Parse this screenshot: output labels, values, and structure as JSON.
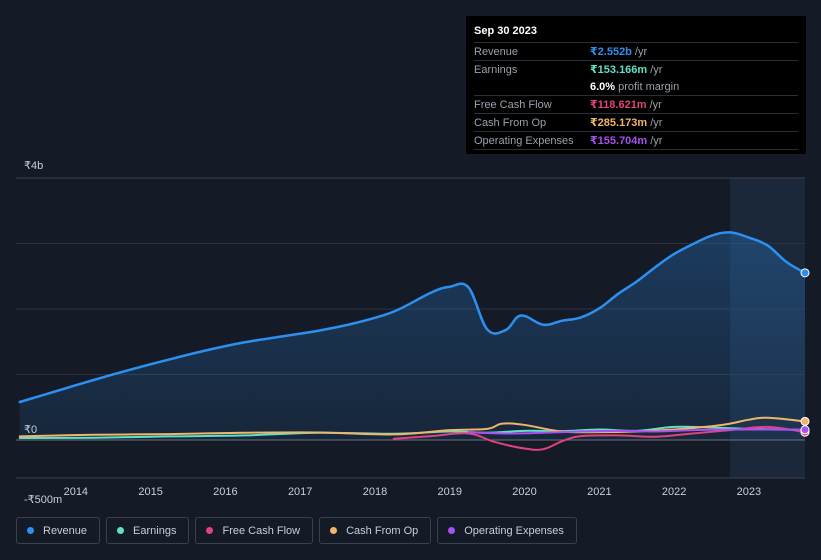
{
  "tooltip": {
    "date": "Sep 30 2023",
    "rows": [
      {
        "label": "Revenue",
        "value": "₹2.552b",
        "unit": "/yr",
        "color": "#2d8ff0"
      },
      {
        "label": "Earnings",
        "value": "₹153.166m",
        "unit": "/yr",
        "color": "#5fe0c6"
      },
      {
        "label": "",
        "value": "6.0%",
        "unit": "profit margin",
        "color": "#ffffff"
      },
      {
        "label": "Free Cash Flow",
        "value": "₹118.621m",
        "unit": "/yr",
        "color": "#e0427e"
      },
      {
        "label": "Cash From Op",
        "value": "₹285.173m",
        "unit": "/yr",
        "color": "#f0b46a"
      },
      {
        "label": "Operating Expenses",
        "value": "₹155.704m",
        "unit": "/yr",
        "color": "#a651f0"
      }
    ]
  },
  "chart_data": {
    "type": "line",
    "title": "",
    "xlabel": "",
    "ylabel": "",
    "y_unit": "₹",
    "ylim": [
      -500,
      4000
    ],
    "y_tick_labels": [
      {
        "value": 4000,
        "label": "₹4b"
      },
      {
        "value": 0,
        "label": "₹0"
      },
      {
        "value": -500,
        "label": "-₹500m"
      }
    ],
    "gridlines": [
      3000,
      2000,
      1000
    ],
    "x_range": [
      2013.2,
      2023.75
    ],
    "x_ticks": [
      2014,
      2015,
      2016,
      2017,
      2018,
      2019,
      2020,
      2021,
      2022,
      2023
    ],
    "x_tick_labels": [
      "2014",
      "2015",
      "2016",
      "2017",
      "2018",
      "2019",
      "2020",
      "2021",
      "2022",
      "2023"
    ],
    "forecast_start": 2022.75,
    "series": [
      {
        "name": "Revenue",
        "color": "#2d8ff0",
        "fill": true,
        "x": [
          2013.25,
          2013.75,
          2014.25,
          2014.75,
          2015.25,
          2015.75,
          2016.25,
          2016.75,
          2017.25,
          2017.75,
          2018.25,
          2018.75,
          2019.0,
          2019.25,
          2019.5,
          2019.75,
          2019.95,
          2020.25,
          2020.5,
          2020.75,
          2021.0,
          2021.25,
          2021.5,
          2021.75,
          2022.0,
          2022.25,
          2022.5,
          2022.75,
          2023.0,
          2023.25,
          2023.5,
          2023.75
        ],
        "values": [
          580,
          750,
          920,
          1080,
          1230,
          1370,
          1490,
          1580,
          1670,
          1790,
          1960,
          2250,
          2340,
          2330,
          1690,
          1680,
          1900,
          1760,
          1820,
          1870,
          2010,
          2230,
          2420,
          2640,
          2840,
          2990,
          3120,
          3170,
          3090,
          2970,
          2720,
          2552
        ]
      },
      {
        "name": "Earnings",
        "color": "#5fe0c6",
        "fill": false,
        "x": [
          2013.25,
          2014.25,
          2015.25,
          2016.25,
          2017.25,
          2018.25,
          2019.0,
          2019.5,
          2020.0,
          2020.5,
          2021.0,
          2021.5,
          2022.0,
          2022.5,
          2023.0,
          2023.5,
          2023.75
        ],
        "values": [
          30,
          35,
          55,
          70,
          110,
          95,
          130,
          110,
          140,
          135,
          160,
          140,
          200,
          190,
          170,
          160,
          153
        ]
      },
      {
        "name": "Free Cash Flow",
        "color": "#e0427e",
        "fill": false,
        "x": [
          2018.25,
          2018.75,
          2019.25,
          2019.6,
          2020.0,
          2020.25,
          2020.5,
          2020.75,
          2021.25,
          2021.75,
          2022.25,
          2022.75,
          2023.25,
          2023.75
        ],
        "values": [
          20,
          60,
          100,
          -30,
          -130,
          -140,
          -20,
          60,
          70,
          50,
          100,
          150,
          200,
          119
        ]
      },
      {
        "name": "Cash From Op",
        "color": "#f0b46a",
        "fill": false,
        "x": [
          2013.25,
          2014.25,
          2015.25,
          2016.25,
          2017.25,
          2018.25,
          2019.0,
          2019.5,
          2019.7,
          2020.0,
          2020.5,
          2021.0,
          2021.5,
          2022.0,
          2022.5,
          2022.75,
          2023.0,
          2023.25,
          2023.75
        ],
        "values": [
          55,
          80,
          90,
          110,
          115,
          85,
          150,
          170,
          250,
          230,
          130,
          120,
          130,
          160,
          210,
          250,
          310,
          340,
          285
        ]
      },
      {
        "name": "Operating Expenses",
        "color": "#a651f0",
        "fill": false,
        "x": [
          2019.25,
          2019.75,
          2020.25,
          2020.75,
          2021.25,
          2021.75,
          2022.25,
          2022.75,
          2023.25,
          2023.75
        ],
        "values": [
          120,
          100,
          110,
          130,
          140,
          130,
          150,
          160,
          160,
          156
        ]
      }
    ]
  },
  "legend": {
    "items": [
      {
        "label": "Revenue",
        "color": "#2d8ff0"
      },
      {
        "label": "Earnings",
        "color": "#5fe0c6"
      },
      {
        "label": "Free Cash Flow",
        "color": "#e0427e"
      },
      {
        "label": "Cash From Op",
        "color": "#f0b46a"
      },
      {
        "label": "Operating Expenses",
        "color": "#a651f0"
      }
    ]
  }
}
